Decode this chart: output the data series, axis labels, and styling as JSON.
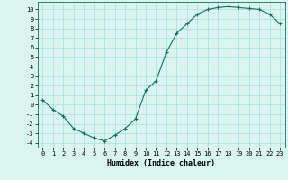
{
  "xlabel": "Humidex (Indice chaleur)",
  "ylabel": "",
  "x_values": [
    0,
    1,
    2,
    3,
    4,
    5,
    6,
    7,
    8,
    9,
    10,
    11,
    12,
    13,
    14,
    15,
    16,
    17,
    18,
    19,
    20,
    21,
    22,
    23
  ],
  "y_values": [
    0.5,
    -0.5,
    -1.2,
    -2.5,
    -3.0,
    -3.5,
    -3.8,
    -3.2,
    -2.5,
    -1.5,
    1.5,
    2.5,
    5.5,
    7.5,
    8.5,
    9.5,
    10.0,
    10.2,
    10.3,
    10.2,
    10.1,
    10.0,
    9.5,
    8.5
  ],
  "line_color": "#1a6b5a",
  "marker": "+",
  "marker_size": 3,
  "background_color": "#d8f5f0",
  "grid_color": "#aadddd",
  "ylim": [
    -4.5,
    10.8
  ],
  "xlim": [
    -0.5,
    23.5
  ],
  "yticks": [
    10,
    9,
    8,
    7,
    6,
    5,
    4,
    3,
    2,
    1,
    0,
    -1,
    -2,
    -3,
    -4
  ],
  "xticks": [
    0,
    1,
    2,
    3,
    4,
    5,
    6,
    7,
    8,
    9,
    10,
    11,
    12,
    13,
    14,
    15,
    16,
    17,
    18,
    19,
    20,
    21,
    22,
    23
  ],
  "label_fontsize": 5.5,
  "tick_fontsize": 5.0,
  "xlabel_fontsize": 6.0
}
